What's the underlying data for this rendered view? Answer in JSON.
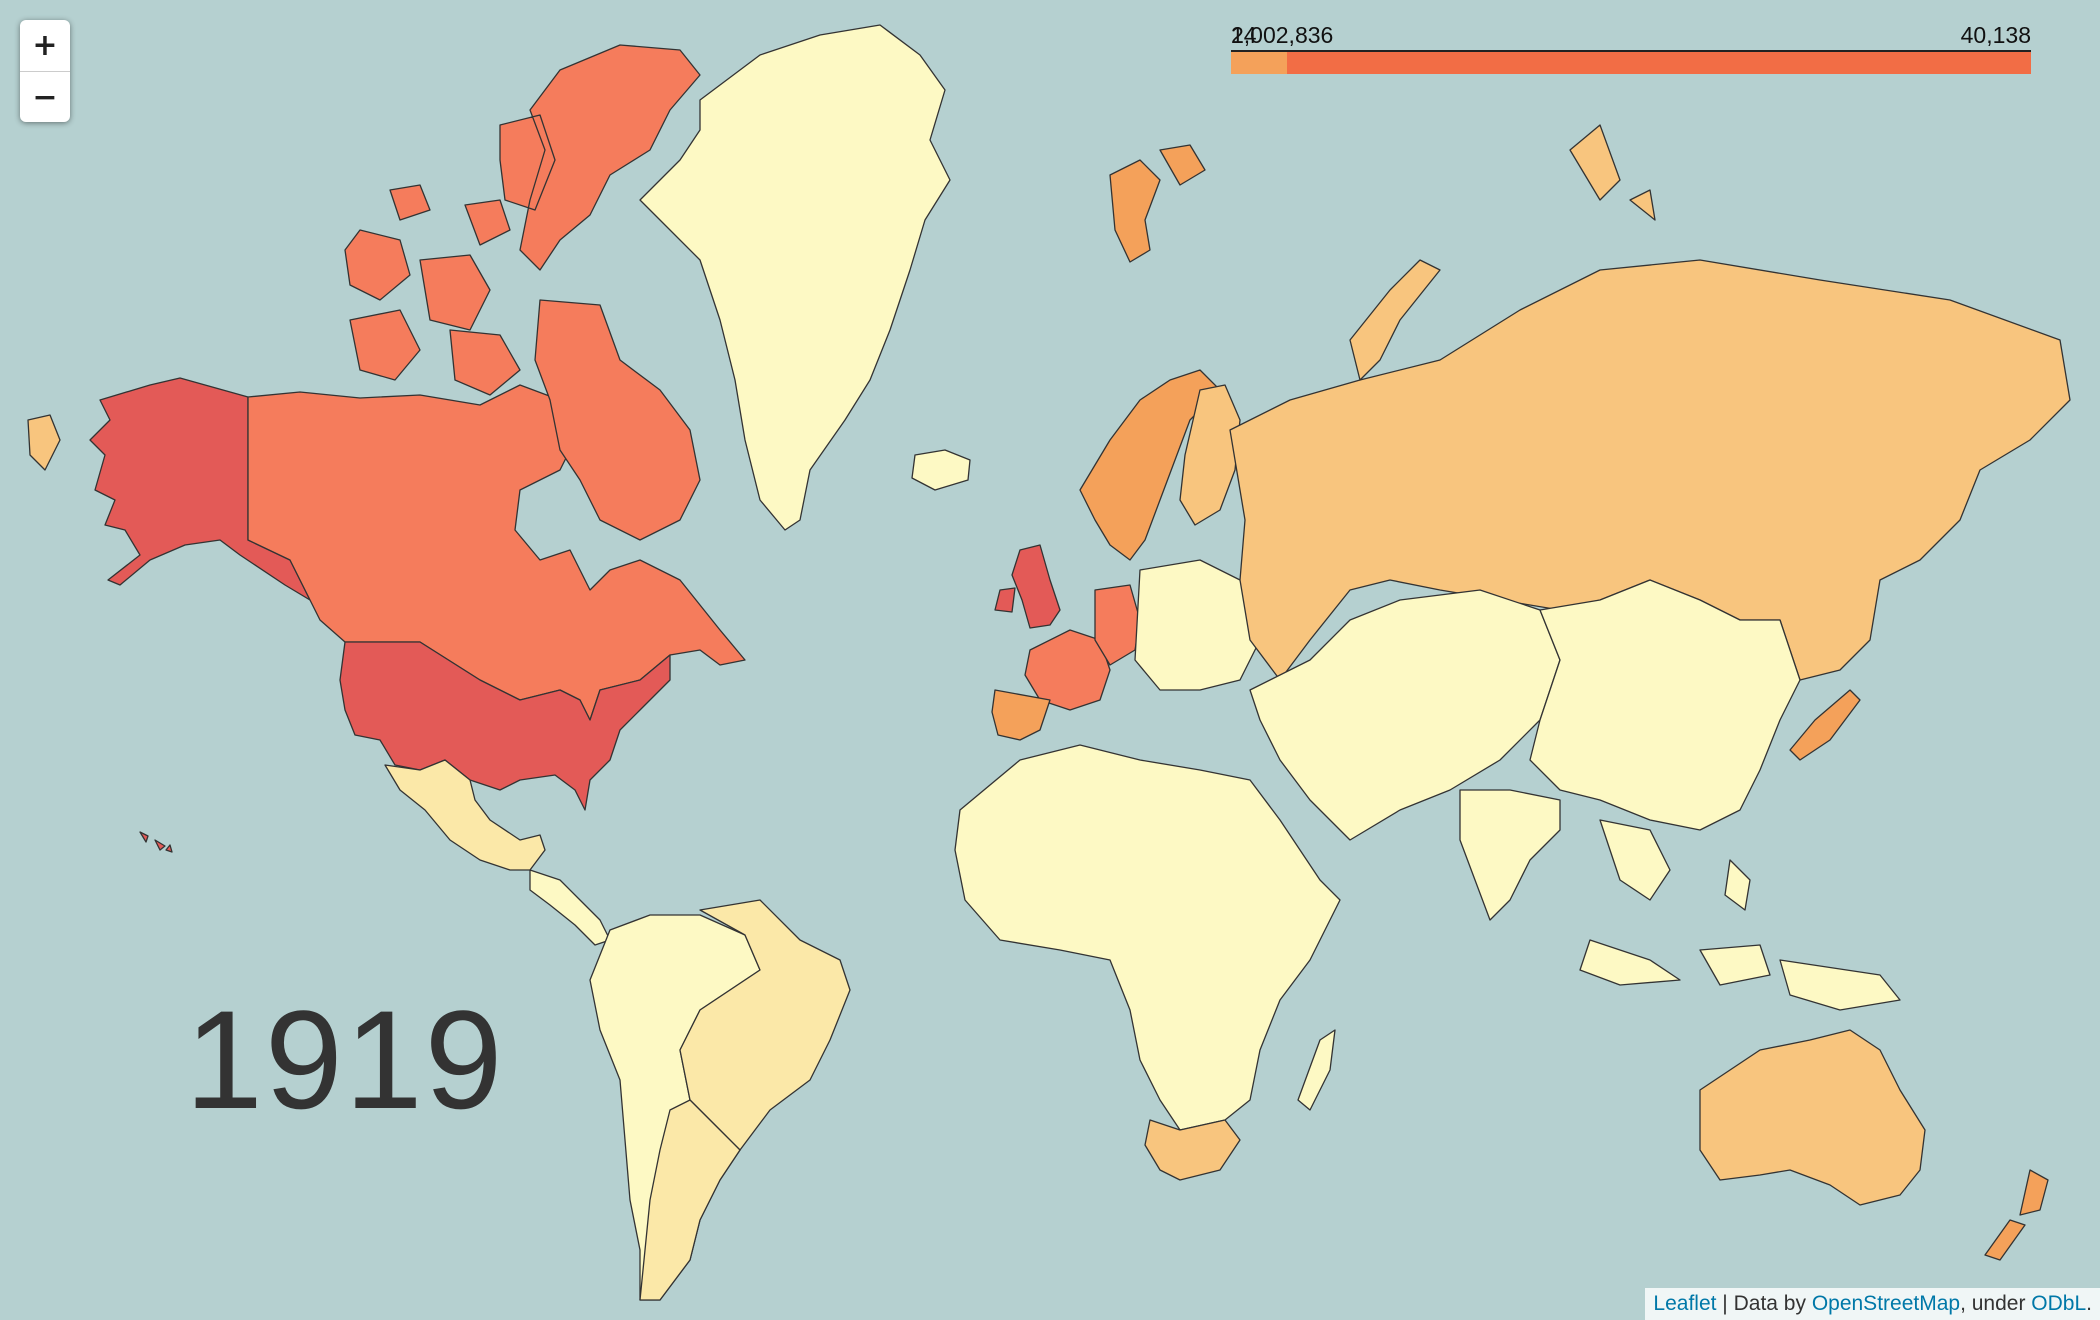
{
  "zoom": {
    "in_label": "+",
    "out_label": "−"
  },
  "year": "1919",
  "legend": {
    "min_label_a": "24",
    "min_label_b": "1,002,836",
    "max_label": "40,138",
    "colors": [
      "#f4a15a",
      "#f26d45"
    ]
  },
  "palette": {
    "water": "#b5d0d0",
    "lowest": "#fdf9c4",
    "low": "#fbe8a8",
    "mid_low": "#fad094",
    "mid": "#f8c57e",
    "mid_high": "#f4a15a",
    "high": "#f57c5c",
    "highest": "#e35a57",
    "border": "#333333"
  },
  "regions": [
    {
      "name": "alaska",
      "level": "highest"
    },
    {
      "name": "usa",
      "level": "highest"
    },
    {
      "name": "canada",
      "level": "high"
    },
    {
      "name": "greenland",
      "level": "lowest"
    },
    {
      "name": "mexico",
      "level": "low"
    },
    {
      "name": "central-america",
      "level": "lowest"
    },
    {
      "name": "south-america",
      "level": "lowest"
    },
    {
      "name": "brazil",
      "level": "low"
    },
    {
      "name": "argentina",
      "level": "low"
    },
    {
      "name": "iceland",
      "level": "lowest"
    },
    {
      "name": "uk",
      "level": "highest"
    },
    {
      "name": "france",
      "level": "high"
    },
    {
      "name": "spain",
      "level": "mid_high"
    },
    {
      "name": "germany",
      "level": "high"
    },
    {
      "name": "scandinavia",
      "level": "mid_high"
    },
    {
      "name": "finland",
      "level": "mid"
    },
    {
      "name": "svalbard",
      "level": "mid_high"
    },
    {
      "name": "eastern-europe",
      "level": "lowest"
    },
    {
      "name": "russia",
      "level": "mid"
    },
    {
      "name": "middle-east-asia",
      "level": "lowest"
    },
    {
      "name": "china",
      "level": "lowest"
    },
    {
      "name": "india",
      "level": "lowest"
    },
    {
      "name": "japan",
      "level": "mid_high"
    },
    {
      "name": "southeast-asia",
      "level": "lowest"
    },
    {
      "name": "africa",
      "level": "lowest"
    },
    {
      "name": "south-africa",
      "level": "mid"
    },
    {
      "name": "madagascar",
      "level": "lowest"
    },
    {
      "name": "australia",
      "level": "mid"
    },
    {
      "name": "new-zealand",
      "level": "mid_high"
    },
    {
      "name": "hawaii",
      "level": "highest"
    },
    {
      "name": "novaya-zemlya",
      "level": "mid"
    },
    {
      "name": "chukotka-west",
      "level": "mid"
    }
  ],
  "attribution": {
    "leaflet": "Leaflet",
    "separator": " | Data by ",
    "osm": "OpenStreetMap",
    "under": ", under ",
    "odbl": "ODbL",
    "end": "."
  }
}
